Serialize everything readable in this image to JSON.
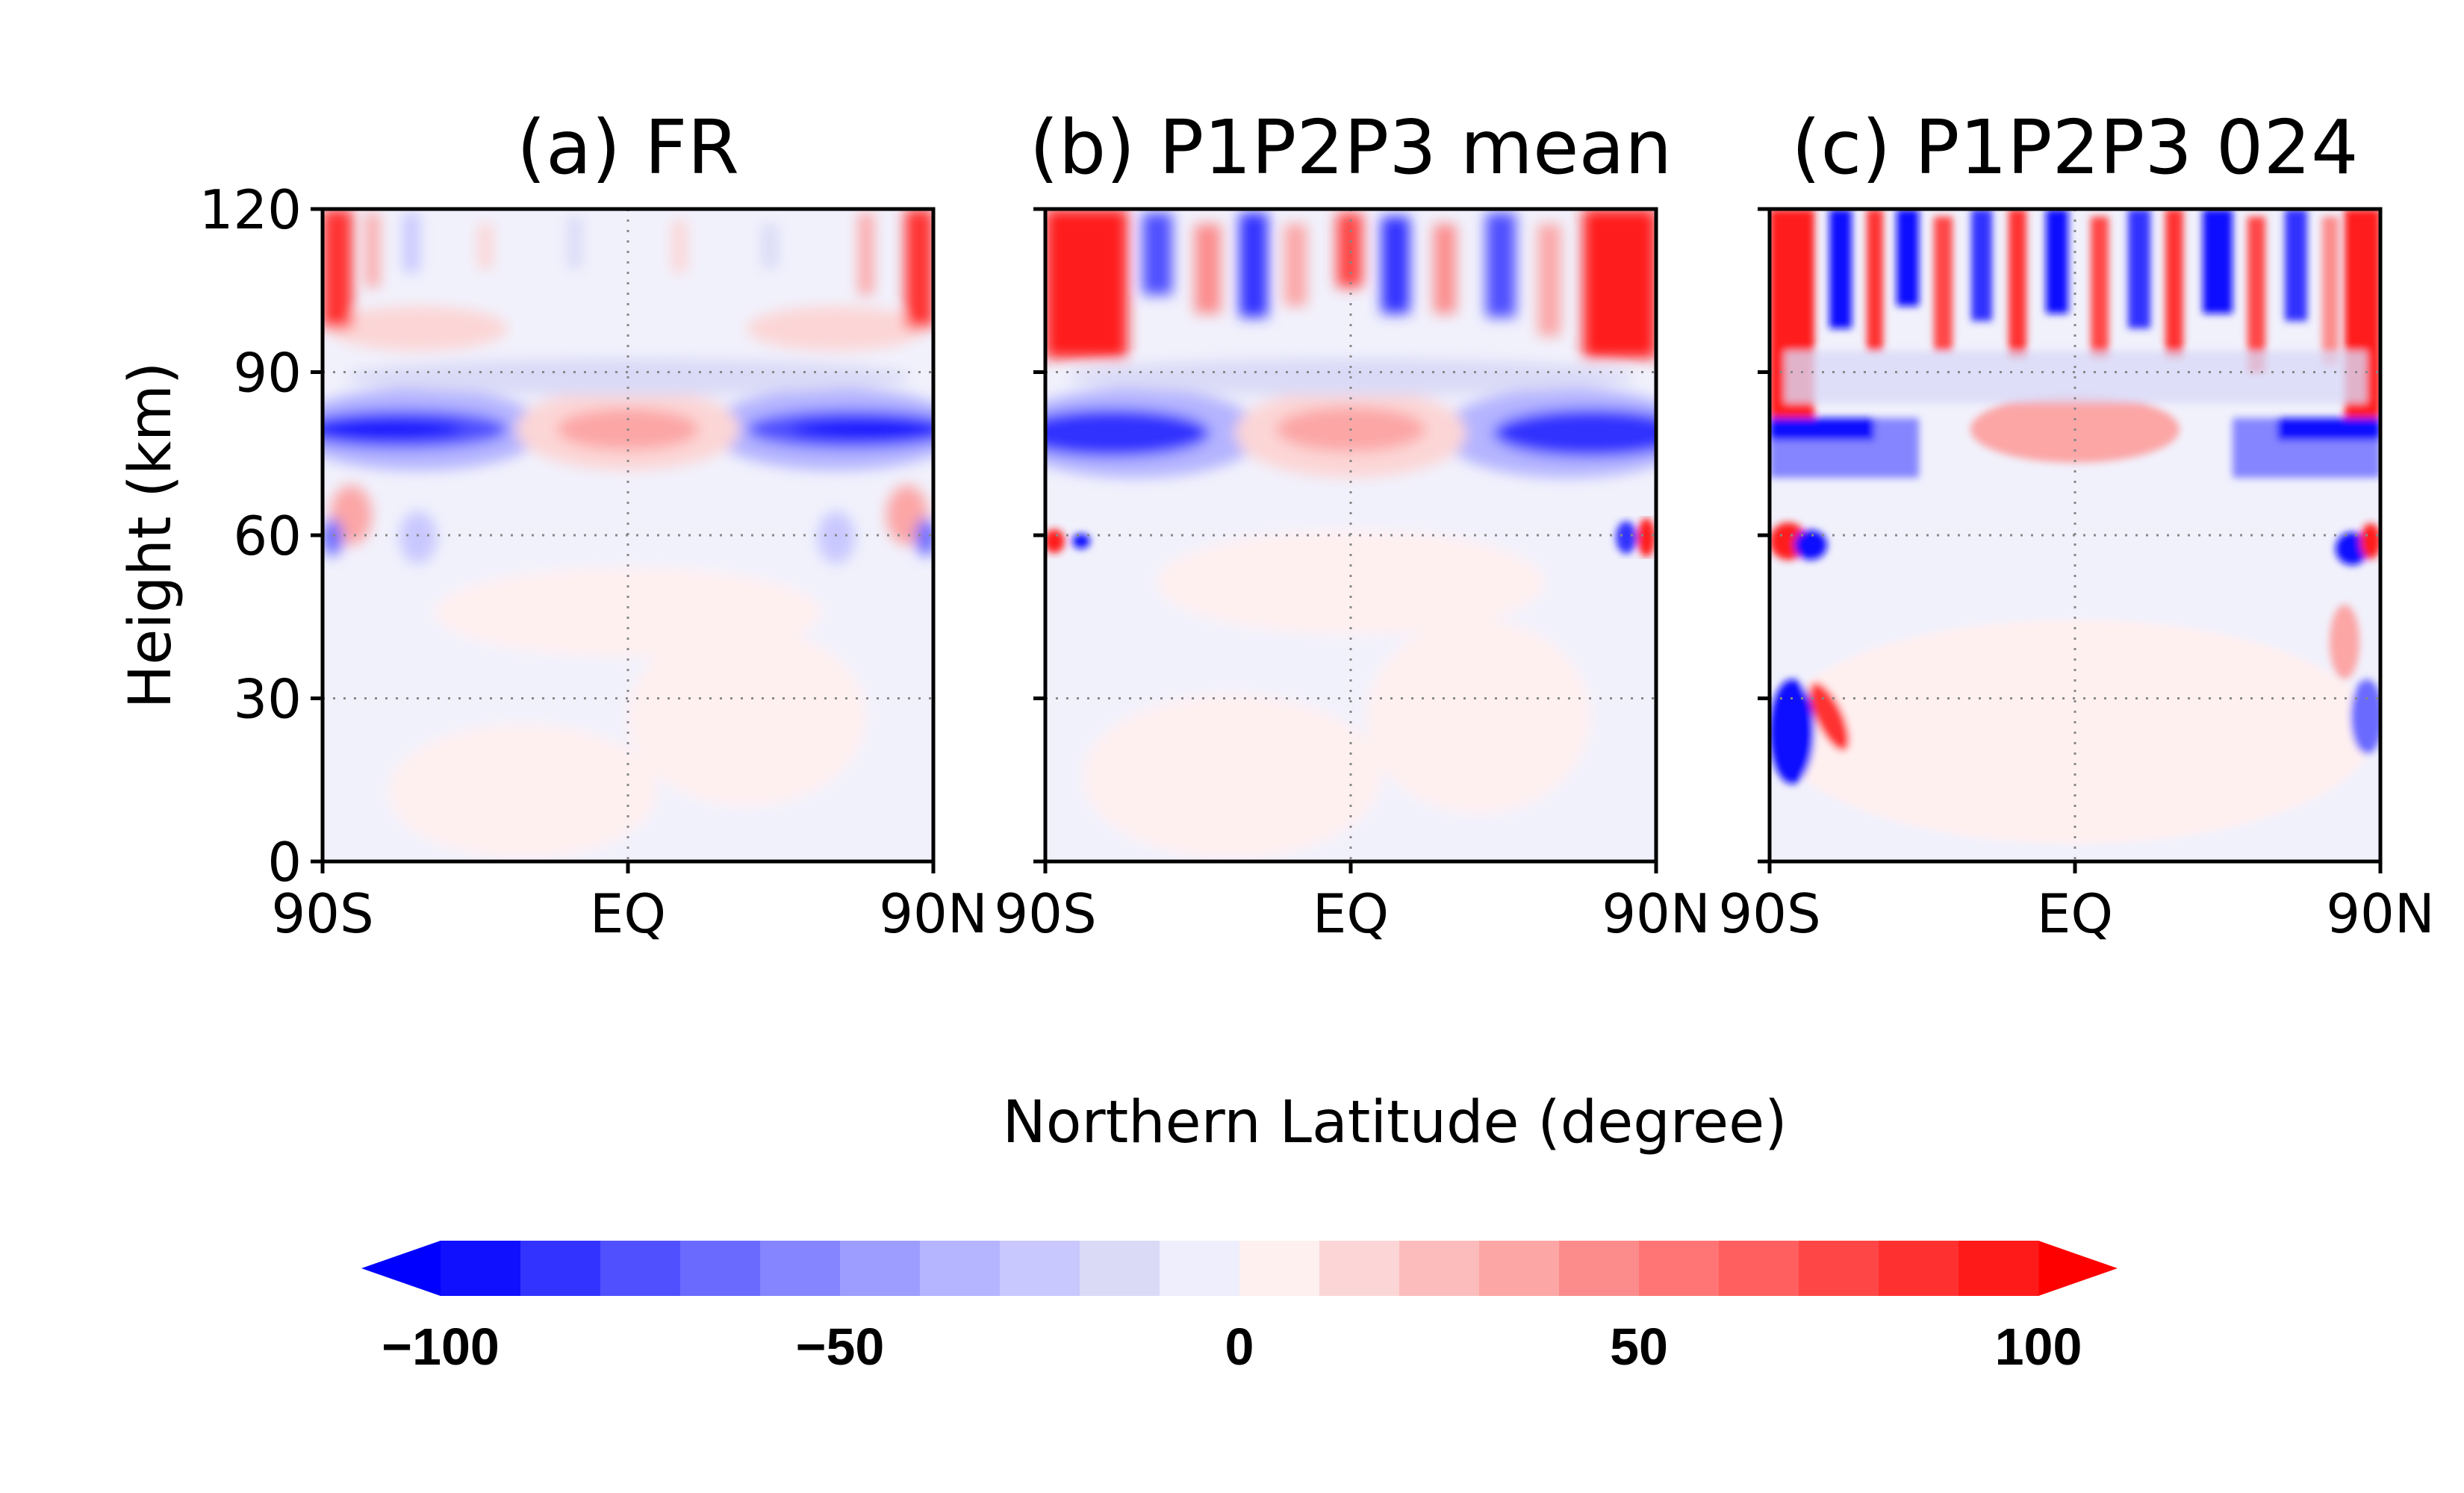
{
  "figure": {
    "xlabel": "Northern Latitude (degree)",
    "ylabel": "Height (km)"
  },
  "chart_data": [
    {
      "type": "heatmap",
      "title": "(a) FR",
      "xticks": [
        "90S",
        "EQ",
        "90N"
      ],
      "yticks": [
        "0",
        "30",
        "60",
        "90",
        "120"
      ],
      "xlim": [
        -90,
        90
      ],
      "ylim": [
        0,
        120
      ],
      "grid": true
    },
    {
      "type": "heatmap",
      "title": "(b) P1P2P3 mean",
      "xticks": [
        "90S",
        "EQ",
        "90N"
      ],
      "yticks": [
        "0",
        "30",
        "60",
        "90",
        "120"
      ],
      "xlim": [
        -90,
        90
      ],
      "ylim": [
        0,
        120
      ],
      "grid": true
    },
    {
      "type": "heatmap",
      "title": "(c) P1P2P3 024",
      "xticks": [
        "90S",
        "EQ",
        "90N"
      ],
      "yticks": [
        "0",
        "30",
        "60",
        "90",
        "120"
      ],
      "xlim": [
        -90,
        90
      ],
      "ylim": [
        0,
        120
      ],
      "grid": true
    }
  ],
  "colorbar": {
    "range": [
      -110,
      110
    ],
    "step": 10,
    "ticks": [
      {
        "value": -100,
        "label": "−100"
      },
      {
        "value": -50,
        "label": "−50"
      },
      {
        "value": 0,
        "label": "0"
      },
      {
        "value": 50,
        "label": "50"
      },
      {
        "value": 100,
        "label": "100"
      }
    ],
    "colors": [
      "#1010ff",
      "#3333ff",
      "#5050ff",
      "#6a6aff",
      "#8585ff",
      "#9d9dff",
      "#b4b4ff",
      "#c8c8ff",
      "#dadaf7",
      "#eeeefc",
      "#fff0f0",
      "#fcd6d6",
      "#fcbcbc",
      "#fca6a6",
      "#fc8c8c",
      "#ff7575",
      "#ff5f5f",
      "#ff4646",
      "#ff3030",
      "#ff1a1a"
    ],
    "extend_low": "#0000ff",
    "extend_high": "#ff0000"
  }
}
